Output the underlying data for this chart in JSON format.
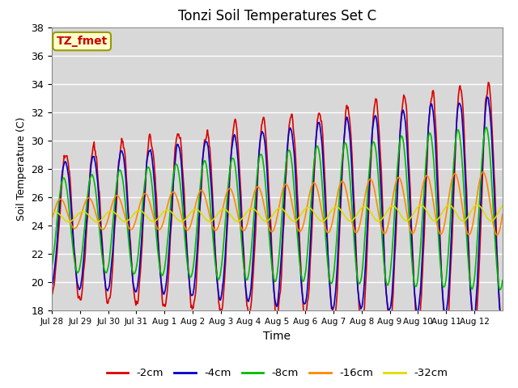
{
  "title": "Tonzi Soil Temperatures Set C",
  "xlabel": "Time",
  "ylabel": "Soil Temperature (C)",
  "ylim": [
    18,
    38
  ],
  "yticks": [
    18,
    20,
    22,
    24,
    26,
    28,
    30,
    32,
    34,
    36,
    38
  ],
  "annotation_text": "TZ_fmet",
  "annotation_color": "#cc0000",
  "annotation_bg": "#ffffcc",
  "annotation_border": "#999900",
  "bg_color": "#d8d8d8",
  "series": [
    {
      "label": "-2cm",
      "color": "#dd0000",
      "lw": 1.2
    },
    {
      "label": "-4cm",
      "color": "#0000cc",
      "lw": 1.2
    },
    {
      "label": "-8cm",
      "color": "#00bb00",
      "lw": 1.2
    },
    {
      "label": "-16cm",
      "color": "#ff8800",
      "lw": 1.2
    },
    {
      "label": "-32cm",
      "color": "#dddd00",
      "lw": 1.2
    }
  ],
  "xtick_labels": [
    "Jul 28",
    "Jul 29",
    "Jul 30",
    "Jul 31",
    "Aug 1",
    "Aug 2",
    "Aug 3",
    "Aug 4",
    "Aug 5",
    "Aug 6",
    "Aug 7",
    "Aug 8",
    "Aug 9",
    "Aug 10",
    "Aug 11",
    "Aug 12"
  ],
  "n_days": 16,
  "pts_per_day": 48
}
